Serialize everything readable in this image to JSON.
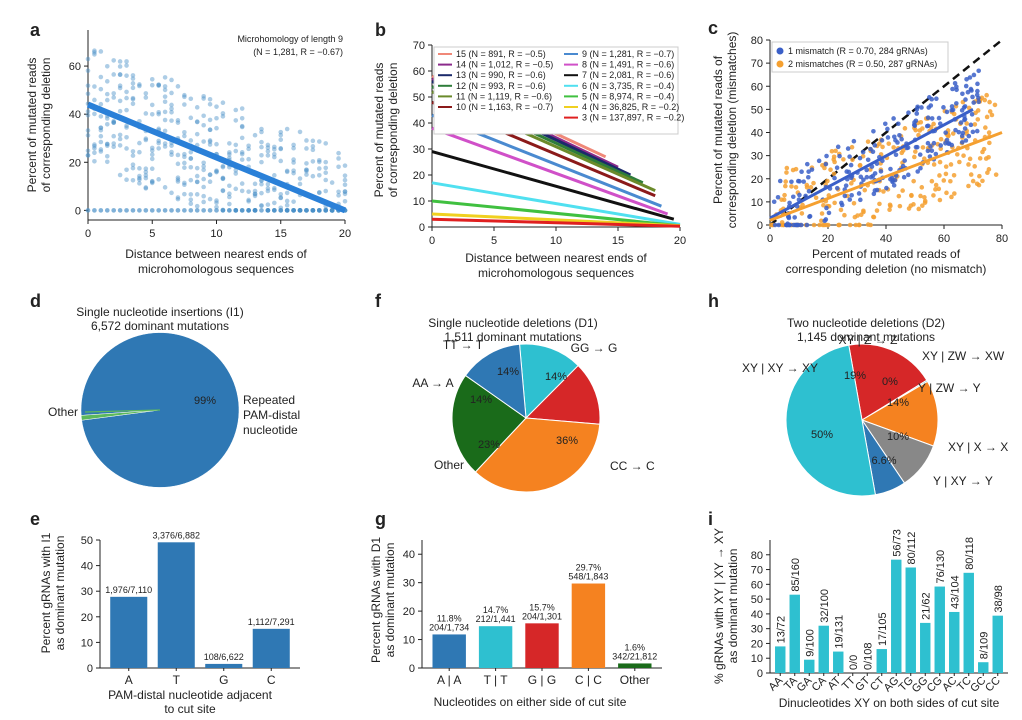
{
  "panel_labels": [
    "a",
    "b",
    "c",
    "d",
    "e",
    "f",
    "g",
    "h",
    "i"
  ],
  "chart_data": [
    {
      "id": "a",
      "type": "scatter",
      "annotation": [
        "Microhomology of length 9",
        "(N = 1,281,  R = −0.67)"
      ],
      "xlabel": [
        "Distance between nearest ends of",
        "microhomologous sequences"
      ],
      "ylabel": [
        "Percent of mutated reads",
        "of corresponding deletion"
      ],
      "xlim": [
        0,
        20
      ],
      "ylim": [
        -4,
        75
      ],
      "xticks": [
        0,
        5,
        10,
        15,
        20
      ],
      "yticks": [
        0,
        20,
        40,
        60
      ],
      "fit": {
        "x": [
          0,
          20
        ],
        "y": [
          44,
          0
        ]
      },
      "color": "#4a90c8"
    },
    {
      "id": "b",
      "type": "line",
      "xlabel": [
        "Distance between nearest ends of",
        "microhomologous sequences"
      ],
      "ylabel": [
        "Percent of mutated reads",
        "of corresponding deletion"
      ],
      "xlim": [
        0,
        20
      ],
      "ylim": [
        0,
        70
      ],
      "xticks": [
        0,
        5,
        10,
        15,
        20
      ],
      "yticks": [
        0,
        10,
        20,
        30,
        40,
        50,
        60,
        70
      ],
      "series": [
        {
          "name": "15 (N = 891, R = −0.5)",
          "color": "#f08878",
          "x": [
            0,
            14
          ],
          "y": [
            58,
            27
          ]
        },
        {
          "name": "14 (N = 1,012, R = −0.5)",
          "color": "#8b2a8b",
          "x": [
            0,
            15
          ],
          "y": [
            57,
            23
          ]
        },
        {
          "name": "13 (N = 990, R = −0.6)",
          "color": "#1b2a6b",
          "x": [
            0,
            16
          ],
          "y": [
            56,
            20
          ]
        },
        {
          "name": "12 (N = 993, R = −0.6)",
          "color": "#2e7d3a",
          "x": [
            0,
            17
          ],
          "y": [
            54,
            17
          ]
        },
        {
          "name": "11 (N = 1,119, R = −0.6)",
          "color": "#6a8a2a",
          "x": [
            0,
            18
          ],
          "y": [
            52,
            14
          ]
        },
        {
          "name": "10 (N = 1,163, R = −0.7)",
          "color": "#8b1a1a",
          "x": [
            0,
            18
          ],
          "y": [
            48,
            12
          ]
        },
        {
          "name": "9 (N = 1,281, R = −0.7)",
          "color": "#4a8ad0",
          "x": [
            0,
            18.5
          ],
          "y": [
            43,
            8
          ]
        },
        {
          "name": "8 (N = 1,491, R = −0.6)",
          "color": "#d050c8",
          "x": [
            0,
            19
          ],
          "y": [
            38,
            5
          ]
        },
        {
          "name": "7 (N = 2,081, R = −0.6)",
          "color": "#111111",
          "x": [
            0,
            19.5
          ],
          "y": [
            29,
            3
          ]
        },
        {
          "name": "6 (N = 3,735, R = −0.4)",
          "color": "#50e0f0",
          "x": [
            0,
            20
          ],
          "y": [
            17,
            1
          ]
        },
        {
          "name": "5 (N = 8,974, R = −0.4)",
          "color": "#40c040",
          "x": [
            0,
            20
          ],
          "y": [
            10,
            0.5
          ]
        },
        {
          "name": "4 (N = 36,825, R = −0.2)",
          "color": "#f0d020",
          "x": [
            0,
            20
          ],
          "y": [
            5,
            0.5
          ]
        },
        {
          "name": "3 (N = 137,897, R = −0.2)",
          "color": "#e02020",
          "x": [
            0,
            20
          ],
          "y": [
            3,
            0.3
          ]
        }
      ]
    },
    {
      "id": "c",
      "type": "scatter",
      "xlabel": [
        "Percent of mutated reads of",
        "corresponding deletion (no mismatch)"
      ],
      "ylabel": [
        "Percent of mutated reads of",
        "corresponding deletion (mismatches)"
      ],
      "xlim": [
        0,
        80
      ],
      "ylim": [
        0,
        80
      ],
      "xticks": [
        0,
        20,
        40,
        60,
        80
      ],
      "yticks": [
        0,
        10,
        20,
        30,
        40,
        50,
        60,
        70,
        80
      ],
      "series": [
        {
          "name": "1 mismatch (R = 0.70, 284 gRNAs)",
          "color": "#3a5fc8",
          "fit": {
            "x": [
              0,
              70
            ],
            "y": [
              3,
              50
            ]
          }
        },
        {
          "name": "2 mismatches (R = 0.50, 287 gRNAs)",
          "color": "#f5a030",
          "fit": {
            "x": [
              0,
              80
            ],
            "y": [
              2,
              40
            ]
          }
        }
      ],
      "diagonal": true
    },
    {
      "id": "d",
      "type": "pie",
      "title": [
        "Single nucleotide insertions (I1)",
        "6,572 dominant mutations"
      ],
      "labels": [
        "Repeated PAM-distal nucleotide",
        "Other"
      ],
      "label_text": {
        "main": [
          "Repeated",
          "PAM-distal",
          "nucleotide"
        ],
        "other": "Other"
      },
      "values": [
        99,
        1
      ],
      "value_labels": [
        "99%",
        ""
      ],
      "colors": [
        "#2f78b4",
        "#5cb85c"
      ]
    },
    {
      "id": "e",
      "type": "bar",
      "categories": [
        "A",
        "T",
        "G",
        "C"
      ],
      "values": [
        27.8,
        49.1,
        1.6,
        15.3
      ],
      "data_labels": [
        "1,976/7,110",
        "3,376/6,882",
        "108/6,622",
        "1,112/7,291"
      ],
      "colors": [
        "#2f78b4",
        "#2f78b4",
        "#2f78b4",
        "#2f78b4"
      ],
      "xlabel": [
        "PAM-distal nucleotide adjacent",
        "to cut site"
      ],
      "ylabel": [
        "Percent gRNAs with I1",
        "as dominant mutation"
      ],
      "ylim": [
        0,
        50
      ],
      "yticks": [
        0,
        10,
        20,
        30,
        40,
        50
      ]
    },
    {
      "id": "f",
      "type": "pie",
      "title": [
        "Single nucleotide deletions (D1)",
        "1,511 dominant mutations"
      ],
      "labels": [
        "TT → T",
        "GG → G",
        "CC → C",
        "Other",
        "AA → A"
      ],
      "values": [
        14,
        14,
        36,
        23,
        14
      ],
      "value_labels": [
        "14%",
        "14%",
        "36%",
        "23%",
        "14%"
      ],
      "colors": [
        "#2ec0d0",
        "#d62728",
        "#f58220",
        "#1a6b1a",
        "#2f78b4"
      ]
    },
    {
      "id": "g",
      "type": "bar",
      "categories": [
        "A | A",
        "T | T",
        "G | G",
        "C | C",
        "Other"
      ],
      "values": [
        11.8,
        14.7,
        15.7,
        29.7,
        1.6
      ],
      "data_labels": [
        [
          "11.8%",
          "204/1,734"
        ],
        [
          "14.7%",
          "212/1,441"
        ],
        [
          "15.7%",
          "204/1,301"
        ],
        [
          "29.7%",
          "548/1,843"
        ],
        [
          "1.6%",
          "342/21,812"
        ]
      ],
      "colors": [
        "#2f78b4",
        "#2ec0d0",
        "#d62728",
        "#f58220",
        "#1a6b1a"
      ],
      "xlabel": [
        "Nucleotides on either side of cut site"
      ],
      "ylabel": [
        "Percent gRNAs with D1",
        "as dominant mutation"
      ],
      "ylim": [
        0,
        45
      ],
      "yticks": [
        0,
        10,
        20,
        30,
        40
      ]
    },
    {
      "id": "h",
      "type": "pie",
      "title": [
        "Two nucleotide deletions (D2)",
        "1,145 dominant mutations"
      ],
      "labels": [
        "XY | Z → Z",
        "XY | ZW → XW",
        "Y | ZW → Y",
        "XY | X → X",
        "Y | XY → Y",
        "XY | XY → XY"
      ],
      "values": [
        19,
        0.3,
        14,
        10,
        6.6,
        50
      ],
      "value_labels": [
        "19%",
        "0%",
        "14%",
        "10%",
        "6.6%",
        "50%"
      ],
      "colors": [
        "#d62728",
        "#2ec0d0",
        "#f58220",
        "#888888",
        "#2f78b4",
        "#2ec0d0"
      ]
    },
    {
      "id": "i",
      "type": "bar",
      "categories": [
        "AA",
        "TA",
        "GA",
        "CA",
        "AT",
        "TT",
        "GT",
        "CT",
        "AG",
        "TG",
        "GG",
        "CG",
        "AC",
        "TC",
        "GC",
        "CC"
      ],
      "values": [
        18,
        53,
        9,
        32,
        14.5,
        0,
        0,
        16.2,
        76.7,
        71.4,
        33.9,
        58.5,
        41.3,
        67.8,
        7.3,
        38.8
      ],
      "data_labels": [
        "13/72",
        "85/160",
        "9/100",
        "32/100",
        "19/131",
        "0/0",
        "0/108",
        "17/105",
        "56/73",
        "80/112",
        "21/62",
        "76/130",
        "43/104",
        "80/118",
        "8/109",
        "38/98"
      ],
      "colors": [
        "#2ec0d0"
      ],
      "xlabel": [
        "Dinucleotides XY on both sides of cut site"
      ],
      "ylabel": [
        "% gRNAs with XY | XY → XY",
        "as dominant mutation"
      ],
      "ylim": [
        0,
        90
      ],
      "yticks": [
        0,
        10,
        20,
        30,
        40,
        50,
        60,
        70,
        80
      ]
    }
  ]
}
